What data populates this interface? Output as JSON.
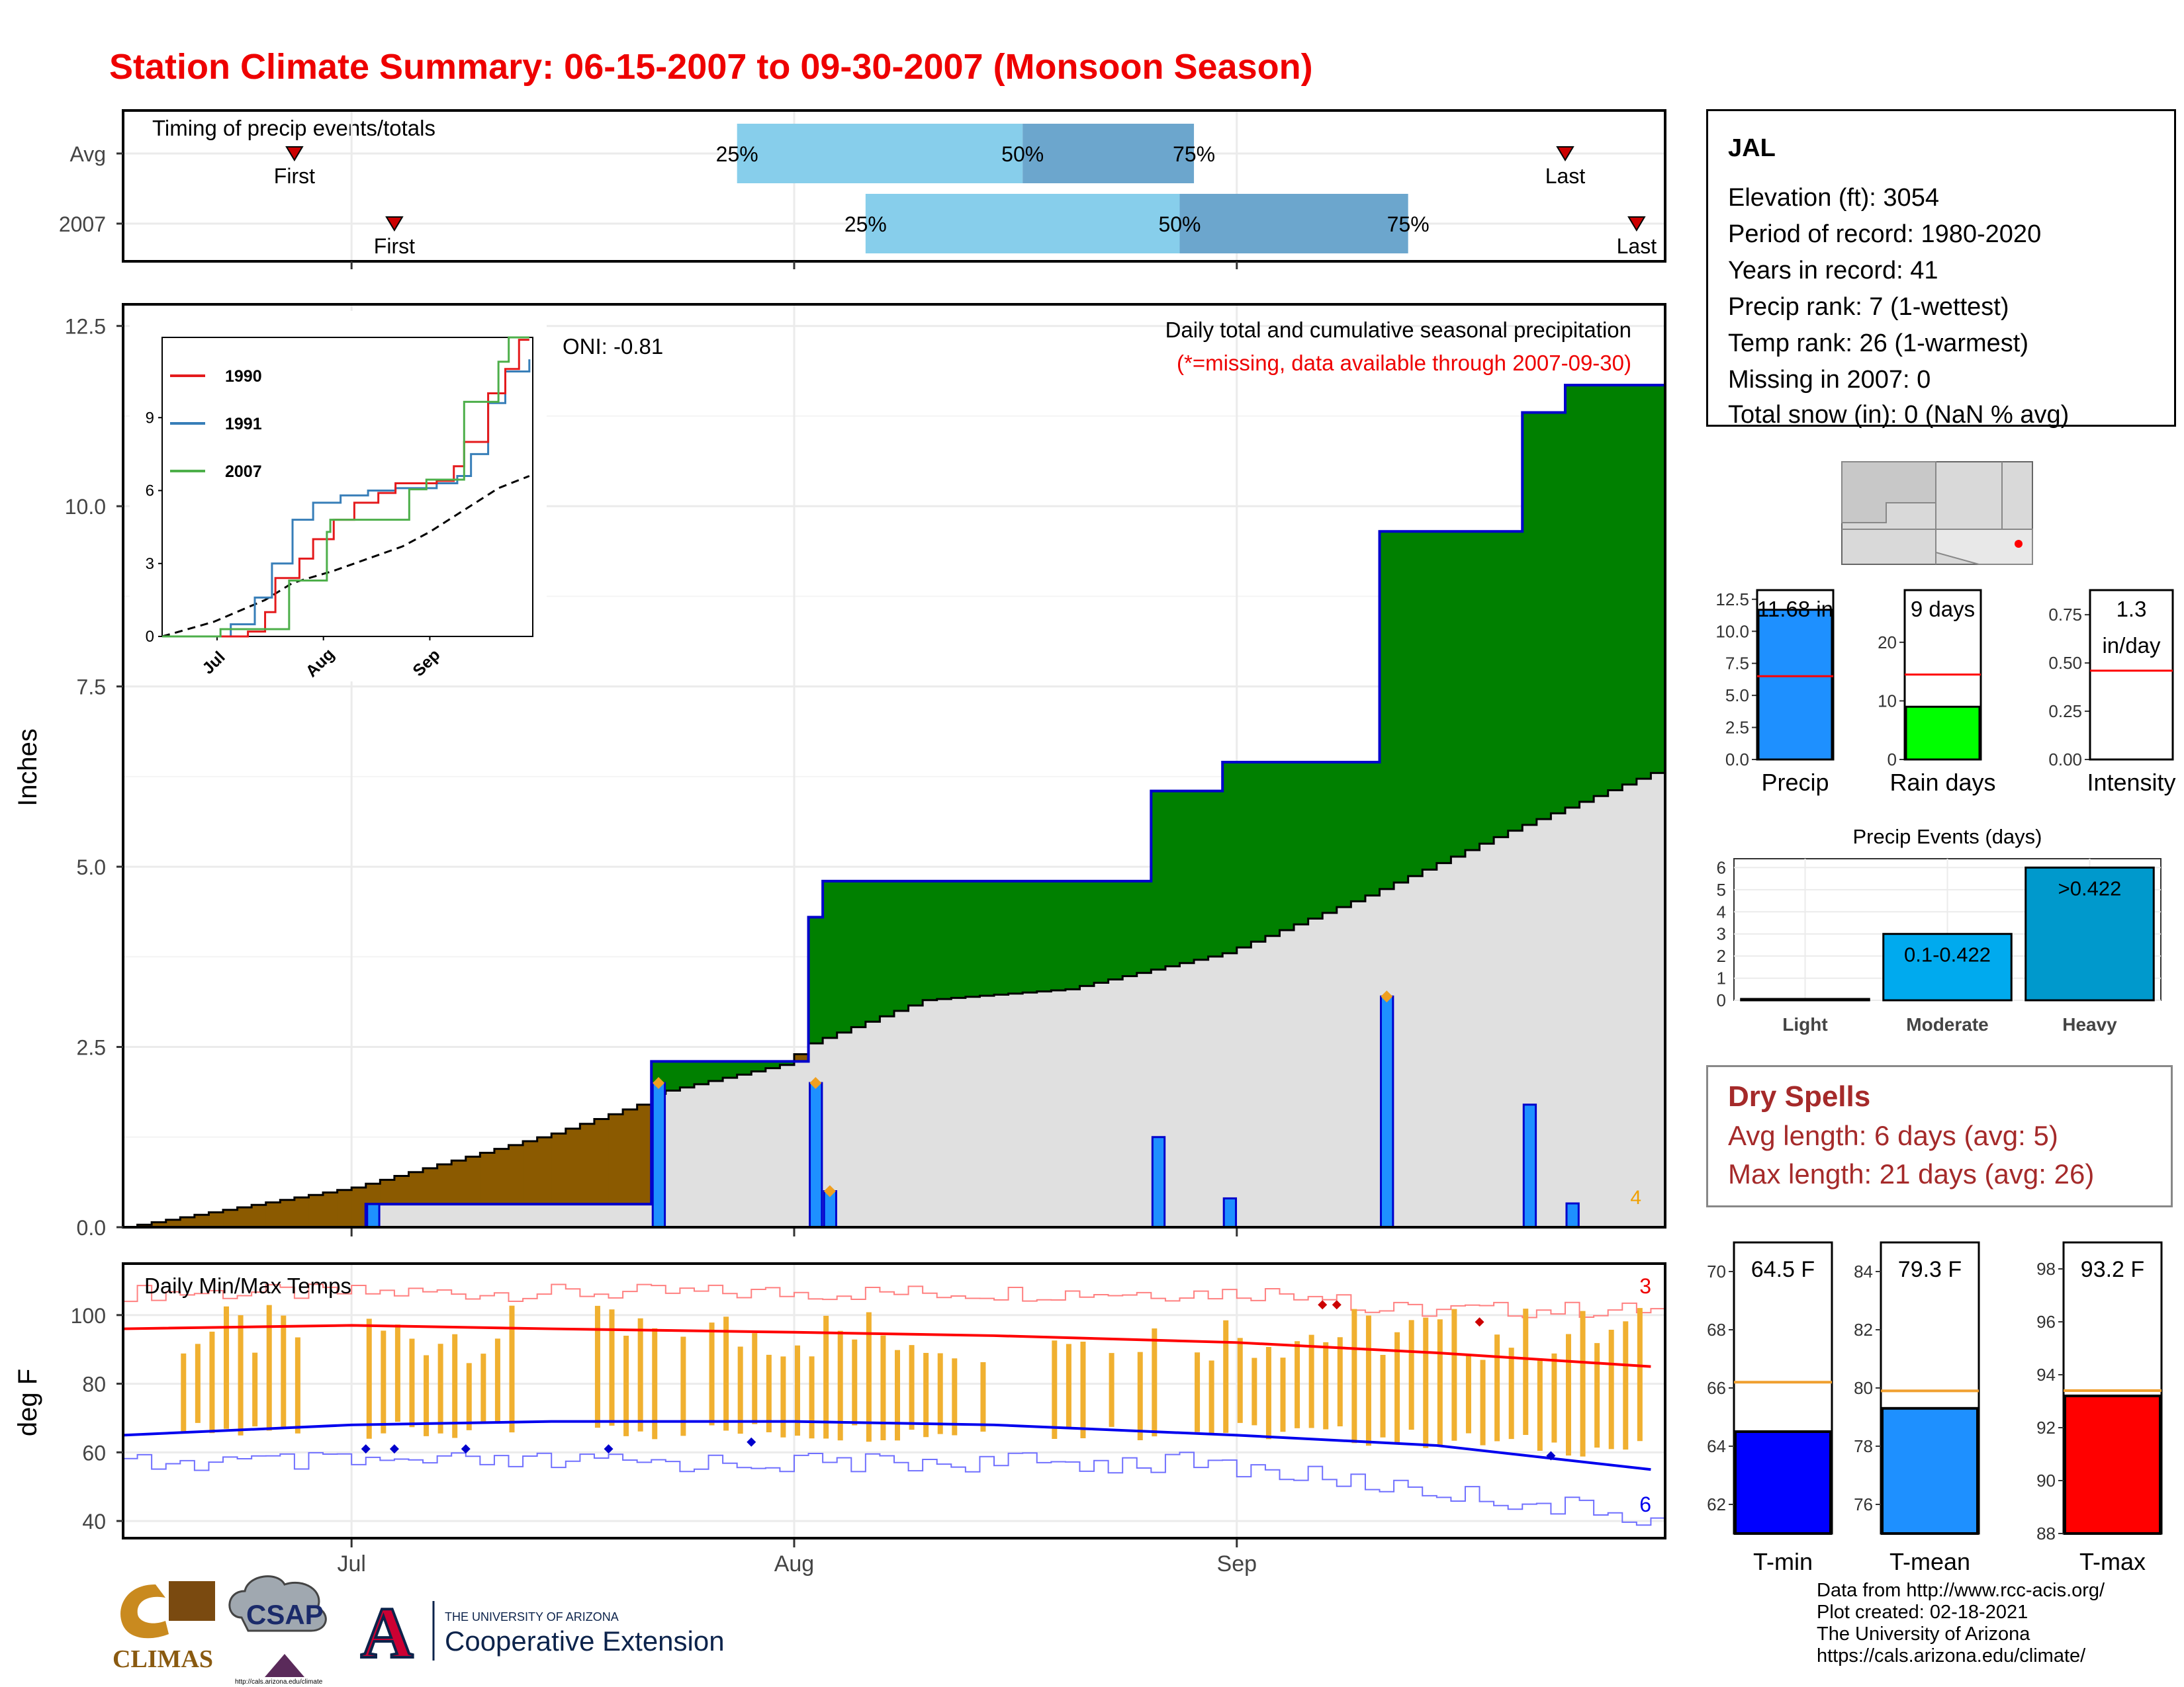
{
  "title": "Station Climate Summary: 06-15-2007 to 09-30-2007 (Monsoon Season)",
  "colors": {
    "title": "#ee0000",
    "accum": "#008000",
    "deficit": "#8b5a00",
    "normal": "#e0e0e0",
    "daily": "#1e90ff",
    "maxline": "#ff0000",
    "minline": "#0000ee",
    "range": "#f0b030"
  },
  "timing_panel": {
    "title": "Timing of precip events/totals",
    "rows": [
      {
        "label": "Avg",
        "first": "First",
        "last": "Last",
        "p25": "25%",
        "p50": "50%",
        "p75": "75%"
      },
      {
        "label": "2007",
        "first": "First",
        "last": "Last",
        "p25": "25%",
        "p50": "50%",
        "p75": "75%"
      }
    ]
  },
  "precip_panel": {
    "ylabel": "Inches",
    "yticks": [
      "0.0",
      "2.5",
      "5.0",
      "7.5",
      "10.0",
      "12.5"
    ],
    "note1": "Daily total and cumulative seasonal precipitation",
    "note2": "(*=missing, data available through 2007-09-30)",
    "oni": "ONI: -0.81",
    "count_label": "4"
  },
  "inset": {
    "legend": [
      "1990",
      "1991",
      "2007"
    ],
    "yticks": [
      "0",
      "3",
      "6",
      "9"
    ],
    "xticks": [
      "Jul",
      "Aug",
      "Sep"
    ]
  },
  "temp_panel": {
    "title": "Daily Min/Max Temps",
    "ylabel": "deg F",
    "yticks": [
      "40",
      "60",
      "80",
      "100"
    ],
    "xticks": [
      "Jul",
      "Aug",
      "Sep"
    ],
    "high_count": "3",
    "low_count": "6"
  },
  "info": {
    "station": "JAL",
    "lines": [
      "Elevation (ft): 3054",
      "Period of record: 1980-2020",
      "Years in record: 41",
      "Precip rank: 7 (1-wettest)",
      "Temp rank: 26 (1-warmest)",
      "Missing in 2007: 0",
      "Total snow (in): 0 (NaN % avg)"
    ]
  },
  "mini_bars": {
    "precip": {
      "label": "Precip",
      "value_text": "11.68 in",
      "yticks": [
        "0.0",
        "2.5",
        "5.0",
        "7.5",
        "10.0",
        "12.5"
      ]
    },
    "raindays": {
      "label": "Rain days",
      "value_text": "9 days",
      "yticks": [
        "0",
        "10",
        "20"
      ]
    },
    "intensity": {
      "label": "Intensity",
      "value_text1": "1.3",
      "value_text2": "in/day",
      "yticks": [
        "0.00",
        "0.25",
        "0.50",
        "0.75"
      ]
    }
  },
  "events": {
    "title": "Precip Events (days)",
    "categories": [
      "Light",
      "Moderate",
      "Heavy"
    ],
    "bar_labels": [
      "",
      "0.1-0.422",
      ">0.422"
    ],
    "yticks": [
      "0",
      "1",
      "2",
      "3",
      "4",
      "5",
      "6"
    ]
  },
  "dry_spells": {
    "title": "Dry Spells",
    "avg": "Avg length: 6 days (avg: 5)",
    "max": "Max length: 21 days (avg: 26)"
  },
  "temp_bars": {
    "tmin": {
      "label": "T-min",
      "value_text": "64.5 F",
      "yticks": [
        "62",
        "64",
        "66",
        "68",
        "70"
      ]
    },
    "tmean": {
      "label": "T-mean",
      "value_text": "79.3 F",
      "yticks": [
        "76",
        "78",
        "80",
        "82",
        "84"
      ]
    },
    "tmax": {
      "label": "T-max",
      "value_text": "93.2 F",
      "yticks": [
        "88",
        "90",
        "92",
        "94",
        "96",
        "98"
      ]
    }
  },
  "footer": [
    "Data from http://www.rcc-acis.org/",
    "Plot created: 02-18-2021",
    "The University of Arizona",
    "https://cals.arizona.edu/climate/"
  ],
  "logos": {
    "climas": "CLIMAS",
    "csap": "CSAP",
    "csap_url": "http://cals.arizona.edu/climate",
    "ua_small": "THE UNIVERSITY OF ARIZONA",
    "ua_big": "Cooperative Extension"
  },
  "chart_data": [
    {
      "type": "line",
      "title": "Daily total and cumulative seasonal precipitation",
      "ylabel": "Inches",
      "ylim": [
        0,
        12.8
      ],
      "x_range": [
        "2007-06-15",
        "2007-09-30"
      ],
      "series": [
        {
          "name": "2007 cumulative",
          "steps": [
            [
              "06-15",
              0
            ],
            [
              "07-02",
              0.32
            ],
            [
              "07-22",
              2.3
            ],
            [
              "08-02",
              4.3
            ],
            [
              "08-03",
              4.8
            ],
            [
              "08-26",
              6.05
            ],
            [
              "08-31",
              6.45
            ],
            [
              "09-11",
              9.65
            ],
            [
              "09-21",
              11.3
            ],
            [
              "09-24",
              11.68
            ],
            [
              "09-30",
              11.68
            ]
          ]
        },
        {
          "name": "normal cumulative",
          "points": [
            [
              "06-15",
              0
            ],
            [
              "07-01",
              0.55
            ],
            [
              "07-15",
              1.3
            ],
            [
              "07-21",
              1.7
            ],
            [
              "07-22",
              1.85
            ],
            [
              "07-31",
              2.25
            ],
            [
              "08-02",
              2.55
            ],
            [
              "08-10",
              3.15
            ],
            [
              "08-20",
              3.3
            ],
            [
              "08-31",
              3.8
            ],
            [
              "09-10",
              4.6
            ],
            [
              "09-20",
              5.5
            ],
            [
              "09-30",
              6.3
            ]
          ]
        },
        {
          "name": "daily precip",
          "bars": [
            [
              "07-02",
              0.32
            ],
            [
              "07-22",
              2.0
            ],
            [
              "08-02",
              2.0
            ],
            [
              "08-03",
              0.5
            ],
            [
              "08-26",
              1.25
            ],
            [
              "08-31",
              0.4
            ],
            [
              "09-11",
              3.2
            ],
            [
              "09-21",
              1.7
            ],
            [
              "09-24",
              0.33
            ]
          ]
        }
      ]
    },
    {
      "type": "line",
      "title": "Daily Min/Max Temps",
      "ylabel": "deg F",
      "ylim": [
        35,
        115
      ],
      "series": [
        {
          "name": "normal max",
          "points": [
            [
              "06-15",
              96
            ],
            [
              "07-01",
              97
            ],
            [
              "07-15",
              96
            ],
            [
              "08-01",
              95
            ],
            [
              "08-15",
              94
            ],
            [
              "09-01",
              92
            ],
            [
              "09-15",
              89
            ],
            [
              "09-30",
              85
            ]
          ]
        },
        {
          "name": "normal min",
          "points": [
            [
              "06-15",
              65
            ],
            [
              "07-01",
              68
            ],
            [
              "07-15",
              69
            ],
            [
              "08-01",
              69
            ],
            [
              "08-15",
              68
            ],
            [
              "09-01",
              65
            ],
            [
              "09-15",
              62
            ],
            [
              "09-30",
              55
            ]
          ]
        }
      ]
    },
    {
      "type": "bar",
      "categories": [
        "Light",
        "Moderate",
        "Heavy"
      ],
      "values": [
        0,
        3,
        6
      ],
      "ylim": [
        0,
        6.4
      ]
    }
  ]
}
